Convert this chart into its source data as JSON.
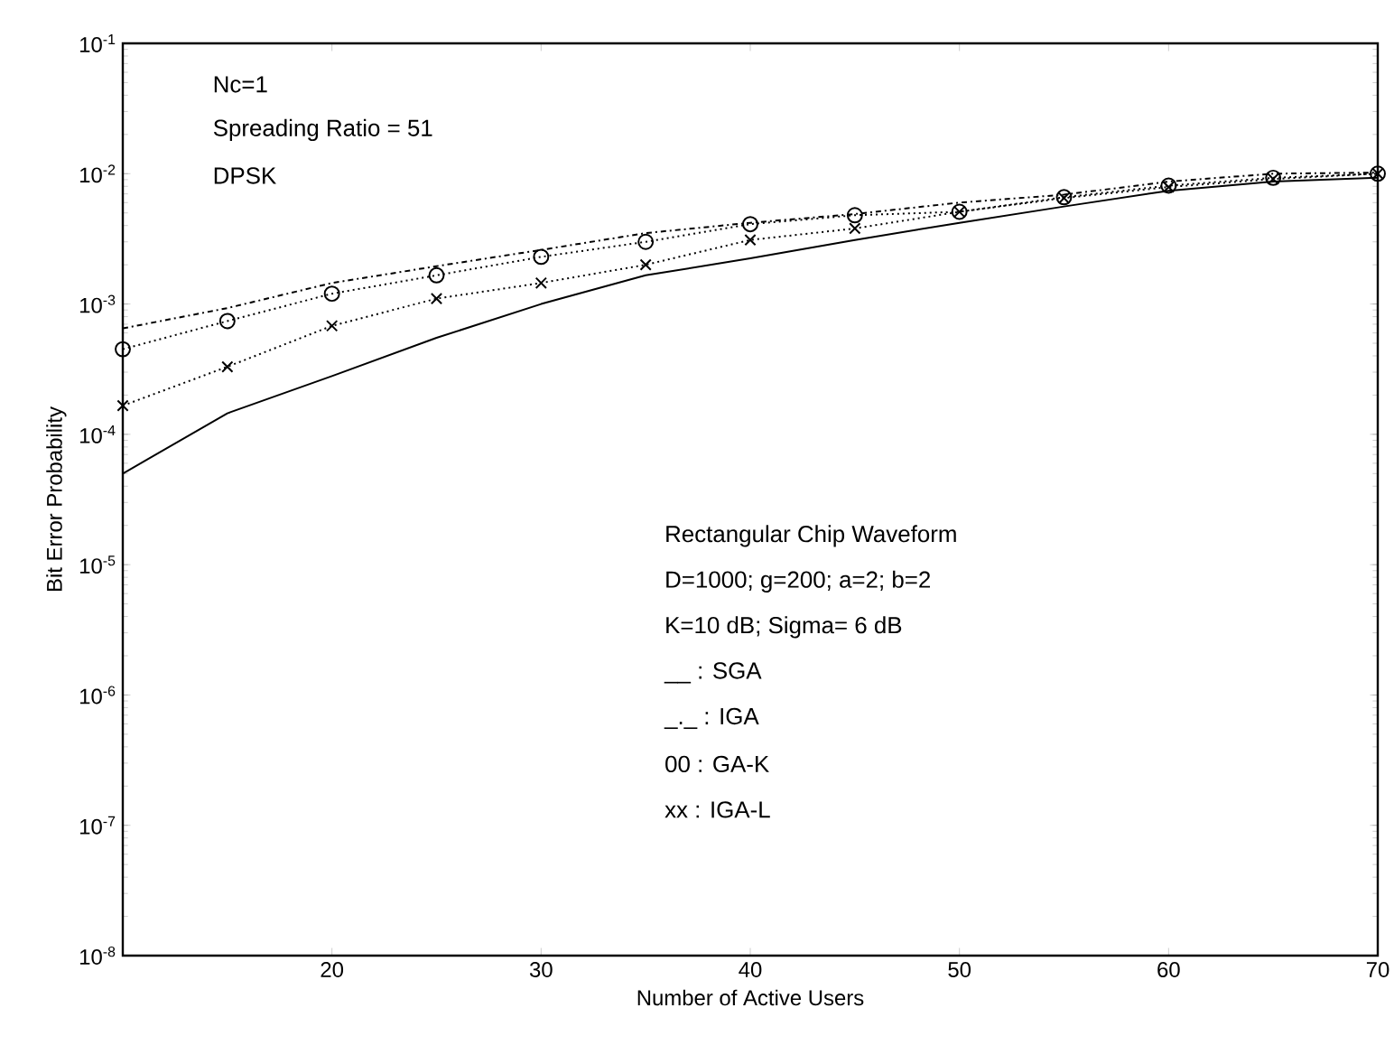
{
  "chart_data": {
    "type": "line",
    "xlabel": "Number of Active Users",
    "ylabel": "Bit Error Probability",
    "log": "y",
    "x": [
      10,
      15,
      20,
      25,
      30,
      35,
      40,
      45,
      50,
      55,
      60,
      65,
      70
    ],
    "xlim": [
      10,
      70
    ],
    "xticks": [
      20,
      30,
      40,
      50,
      60,
      70
    ],
    "ylim": [
      1e-08,
      0.1
    ],
    "yticks": [
      {
        "value": 1e-08,
        "label": "10$^{-8}$"
      },
      {
        "value": 1e-07,
        "label": "10$^{-7}$"
      },
      {
        "value": 1e-06,
        "label": "10$^{-6}$"
      },
      {
        "value": 1e-05,
        "label": "10$^{-5}$"
      },
      {
        "value": 0.0001,
        "label": "10$^{-4}$"
      },
      {
        "value": 0.001,
        "label": "10$^{-3}$"
      },
      {
        "value": 0.01,
        "label": "10$^{-2}$"
      },
      {
        "value": 0.1,
        "label": "10$^{-1}$"
      }
    ],
    "series": [
      {
        "color": "#000000",
        "line_style": "solid",
        "marker": "none",
        "values": [
          5e-05,
          0.000145,
          0.00028,
          0.00055,
          0.001,
          0.00166,
          0.00224,
          0.0031,
          0.0042,
          0.0056,
          0.0074,
          0.0087,
          0.0093
        ]
      },
      {
        "color": "#000000",
        "line_style": "dashdot",
        "marker": "none",
        "values": [
          0.00065,
          0.00093,
          0.00145,
          0.00195,
          0.0026,
          0.0035,
          0.0042,
          0.0049,
          0.006,
          0.0069,
          0.0087,
          0.01,
          0.0102
        ]
      },
      {
        "color": "#000000",
        "line_style": "dotted",
        "marker": "circle",
        "values": [
          0.00045,
          0.00074,
          0.0012,
          0.00166,
          0.0023,
          0.003,
          0.0041,
          0.0048,
          0.0051,
          0.0066,
          0.0081,
          0.0093,
          0.01
        ]
      },
      {
        "color": "#000000",
        "line_style": "dotted",
        "marker": "cross",
        "values": [
          0.000166,
          0.00033,
          0.00068,
          0.0011,
          0.00145,
          0.002,
          0.0031,
          0.0038,
          0.0051,
          0.0065,
          0.0079,
          0.0091,
          0.01
        ]
      }
    ],
    "annotations": [
      "Nc=1",
      "Spreading Ratio = 51",
      "DPSK",
      "Rectangular Chip Waveform",
      "D=1000; g=200; a=2; b=2",
      "K=10 dB; Sigma= 6 dB",
      "__ : SGA",
      "_._ : IGA",
      "00 : GA-K",
      "xx : IGA-L"
    ]
  }
}
